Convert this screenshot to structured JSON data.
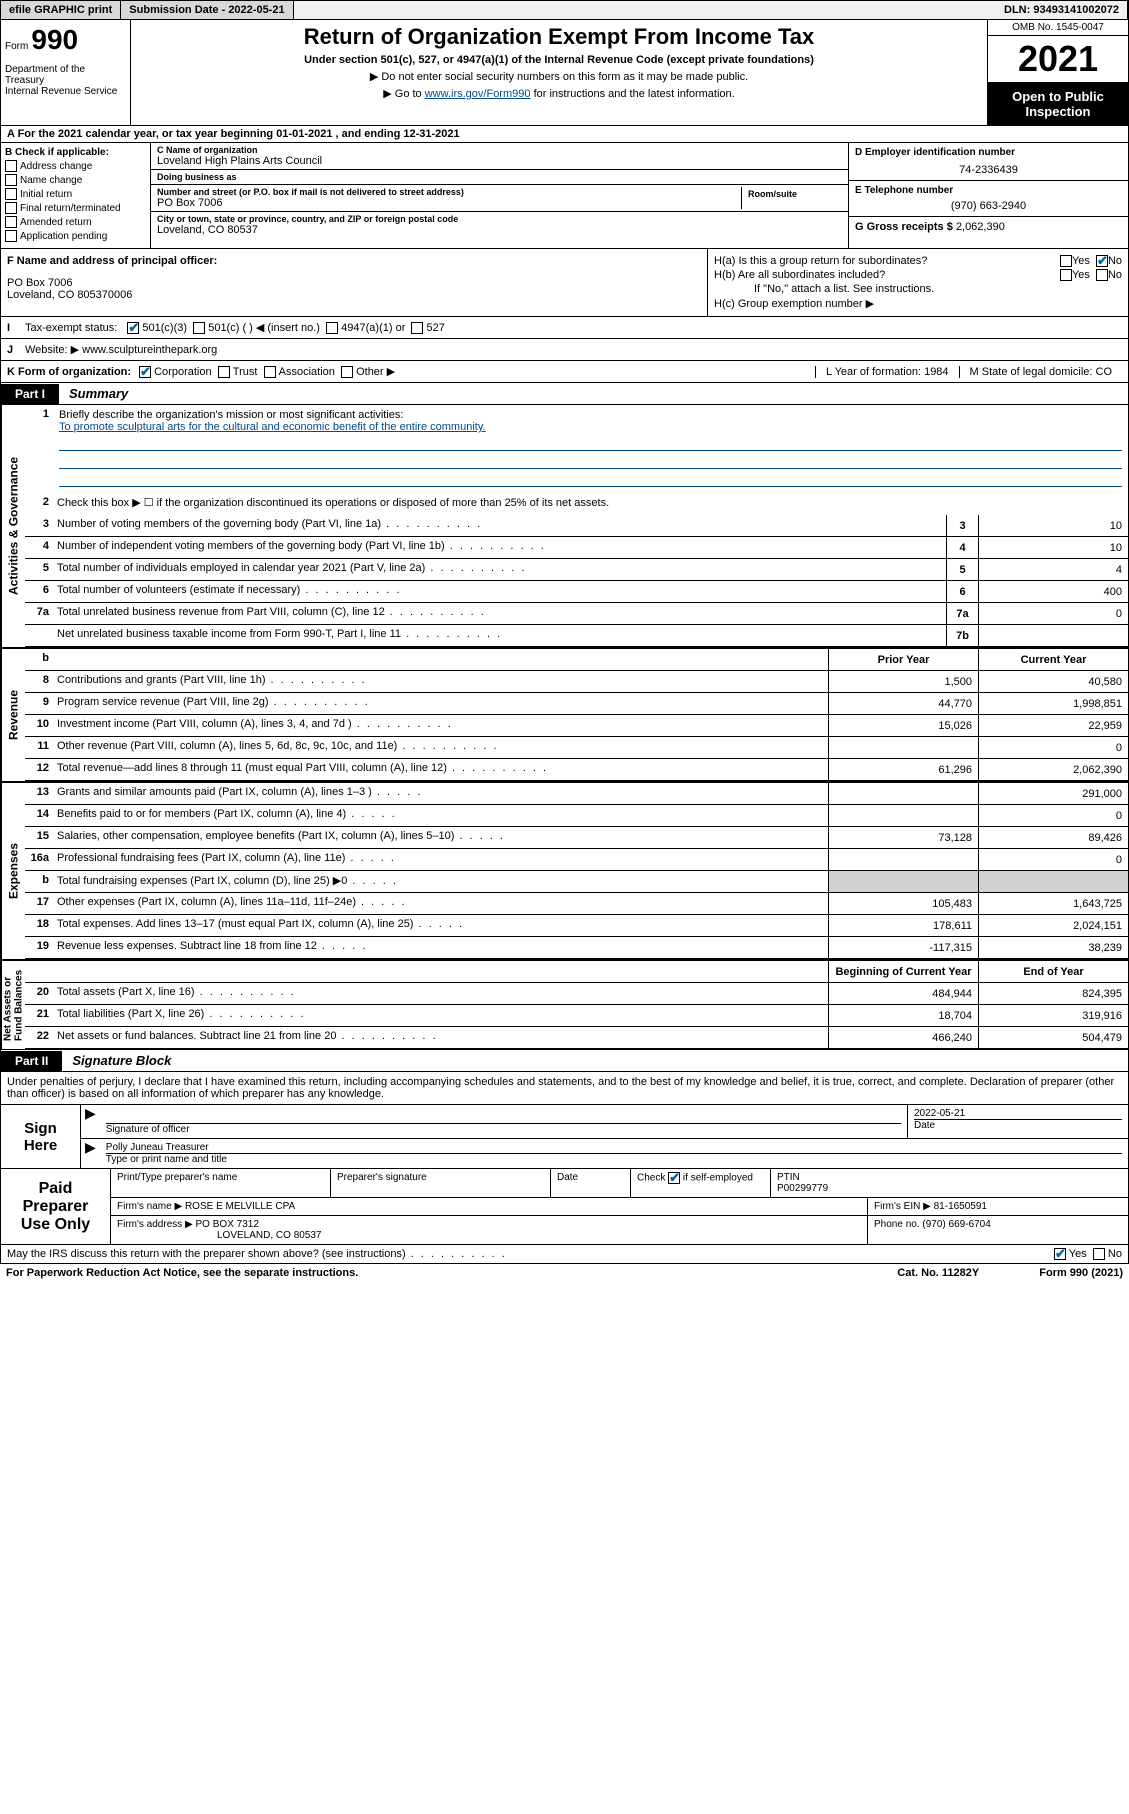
{
  "topbar": {
    "efile": "efile GRAPHIC print",
    "submission_label": "Submission Date - 2022-05-21",
    "dln": "DLN: 93493141002072"
  },
  "header": {
    "form_label": "Form",
    "form_no": "990",
    "title": "Return of Organization Exempt From Income Tax",
    "sub1": "Under section 501(c), 527, or 4947(a)(1) of the Internal Revenue Code (except private foundations)",
    "sub2": "▶ Do not enter social security numbers on this form as it may be made public.",
    "sub3_pre": "▶ Go to ",
    "sub3_link": "www.irs.gov/Form990",
    "sub3_post": " for instructions and the latest information.",
    "dept": "Department of the Treasury\nInternal Revenue Service",
    "omb": "OMB No. 1545-0047",
    "year": "2021",
    "open": "Open to Public Inspection"
  },
  "rowA": "A For the 2021 calendar year, or tax year beginning 01-01-2021   , and ending 12-31-2021",
  "boxB": {
    "title": "B Check if applicable:",
    "opts": [
      "Address change",
      "Name change",
      "Initial return",
      "Final return/terminated",
      "Amended return",
      "Application pending"
    ]
  },
  "boxC": {
    "name_lbl": "C Name of organization",
    "name": "Loveland High Plains Arts Council",
    "dba_lbl": "Doing business as",
    "dba": "",
    "addr_lbl": "Number and street (or P.O. box if mail is not delivered to street address)",
    "addr": "PO Box 7006",
    "room_lbl": "Room/suite",
    "city_lbl": "City or town, state or province, country, and ZIP or foreign postal code",
    "city": "Loveland, CO  80537"
  },
  "boxD": {
    "lbl": "D Employer identification number",
    "val": "74-2336439"
  },
  "boxE": {
    "lbl": "E Telephone number",
    "val": "(970) 663-2940"
  },
  "boxG": {
    "lbl": "G Gross receipts $",
    "val": "2,062,390"
  },
  "boxF": {
    "lbl": "F Name and address of principal officer:",
    "line1": "PO Box 7006",
    "line2": "Loveland, CO  805370006"
  },
  "boxH": {
    "ha": "H(a)  Is this a group return for subordinates?",
    "hb": "H(b)  Are all subordinates included?",
    "hb_note": "If \"No,\" attach a list. See instructions.",
    "hc": "H(c)  Group exemption number ▶"
  },
  "lineI": {
    "label": "Tax-exempt status:",
    "opts": [
      "501(c)(3)",
      "501(c) (  ) ◀ (insert no.)",
      "4947(a)(1) or",
      "527"
    ]
  },
  "lineJ": {
    "label": "Website: ▶",
    "val": "www.sculptureinthepark.org"
  },
  "lineK": {
    "label": "K Form of organization:",
    "opts": [
      "Corporation",
      "Trust",
      "Association",
      "Other ▶"
    ],
    "L": "L Year of formation: 1984",
    "M": "M State of legal domicile: CO"
  },
  "part1": {
    "tag": "Part I",
    "title": "Summary"
  },
  "mission": {
    "q": "Briefly describe the organization's mission or most significant activities:",
    "text": "To promote sculptural arts for the cultural and economic benefit of the entire community."
  },
  "line2": "Check this box ▶ ☐  if the organization discontinued its operations or disposed of more than 25% of its net assets.",
  "gov_rows": [
    {
      "n": "3",
      "d": "Number of voting members of the governing body (Part VI, line 1a)",
      "k": "3",
      "v": "10"
    },
    {
      "n": "4",
      "d": "Number of independent voting members of the governing body (Part VI, line 1b)",
      "k": "4",
      "v": "10"
    },
    {
      "n": "5",
      "d": "Total number of individuals employed in calendar year 2021 (Part V, line 2a)",
      "k": "5",
      "v": "4"
    },
    {
      "n": "6",
      "d": "Total number of volunteers (estimate if necessary)",
      "k": "6",
      "v": "400"
    },
    {
      "n": "7a",
      "d": "Total unrelated business revenue from Part VIII, column (C), line 12",
      "k": "7a",
      "v": "0"
    },
    {
      "n": "",
      "d": "Net unrelated business taxable income from Form 990-T, Part I, line 11",
      "k": "7b",
      "v": ""
    }
  ],
  "col_hdrs": {
    "b": "b",
    "prior": "Prior Year",
    "current": "Current Year"
  },
  "rev_rows": [
    {
      "n": "8",
      "d": "Contributions and grants (Part VIII, line 1h)",
      "p": "1,500",
      "c": "40,580"
    },
    {
      "n": "9",
      "d": "Program service revenue (Part VIII, line 2g)",
      "p": "44,770",
      "c": "1,998,851"
    },
    {
      "n": "10",
      "d": "Investment income (Part VIII, column (A), lines 3, 4, and 7d )",
      "p": "15,026",
      "c": "22,959"
    },
    {
      "n": "11",
      "d": "Other revenue (Part VIII, column (A), lines 5, 6d, 8c, 9c, 10c, and 11e)",
      "p": "",
      "c": "0"
    },
    {
      "n": "12",
      "d": "Total revenue—add lines 8 through 11 (must equal Part VIII, column (A), line 12)",
      "p": "61,296",
      "c": "2,062,390"
    }
  ],
  "exp_rows": [
    {
      "n": "13",
      "d": "Grants and similar amounts paid (Part IX, column (A), lines 1–3 )",
      "p": "",
      "c": "291,000"
    },
    {
      "n": "14",
      "d": "Benefits paid to or for members (Part IX, column (A), line 4)",
      "p": "",
      "c": "0"
    },
    {
      "n": "15",
      "d": "Salaries, other compensation, employee benefits (Part IX, column (A), lines 5–10)",
      "p": "73,128",
      "c": "89,426"
    },
    {
      "n": "16a",
      "d": "Professional fundraising fees (Part IX, column (A), line 11e)",
      "p": "",
      "c": "0"
    },
    {
      "n": "b",
      "d": "Total fundraising expenses (Part IX, column (D), line 25) ▶0",
      "p": "shade",
      "c": "shade"
    },
    {
      "n": "17",
      "d": "Other expenses (Part IX, column (A), lines 11a–11d, 11f–24e)",
      "p": "105,483",
      "c": "1,643,725"
    },
    {
      "n": "18",
      "d": "Total expenses. Add lines 13–17 (must equal Part IX, column (A), line 25)",
      "p": "178,611",
      "c": "2,024,151"
    },
    {
      "n": "19",
      "d": "Revenue less expenses. Subtract line 18 from line 12",
      "p": "-117,315",
      "c": "38,239"
    }
  ],
  "na_hdrs": {
    "b": "Beginning of Current Year",
    "e": "End of Year"
  },
  "na_rows": [
    {
      "n": "20",
      "d": "Total assets (Part X, line 16)",
      "p": "484,944",
      "c": "824,395"
    },
    {
      "n": "21",
      "d": "Total liabilities (Part X, line 26)",
      "p": "18,704",
      "c": "319,916"
    },
    {
      "n": "22",
      "d": "Net assets or fund balances. Subtract line 21 from line 20",
      "p": "466,240",
      "c": "504,479"
    }
  ],
  "sidelabels": {
    "gov": "Activities & Governance",
    "rev": "Revenue",
    "exp": "Expenses",
    "na": "Net Assets or\nFund Balances"
  },
  "part2": {
    "tag": "Part II",
    "title": "Signature Block"
  },
  "penalty": "Under penalties of perjury, I declare that I have examined this return, including accompanying schedules and statements, and to the best of my knowledge and belief, it is true, correct, and complete. Declaration of preparer (other than officer) is based on all information of which preparer has any knowledge.",
  "sign": {
    "here": "Sign Here",
    "sig_lbl": "Signature of officer",
    "date": "2022-05-21",
    "date_lbl": "Date",
    "name": "Polly Juneau  Treasurer",
    "name_lbl": "Type or print name and title"
  },
  "prep": {
    "title": "Paid Preparer Use Only",
    "hdrs": [
      "Print/Type preparer's name",
      "Preparer's signature",
      "Date"
    ],
    "check_lbl": "Check",
    "self": "if self-employed",
    "ptin_lbl": "PTIN",
    "ptin": "P00299779",
    "firm_name_lbl": "Firm's name   ▶",
    "firm_name": "ROSE E MELVILLE CPA",
    "firm_ein_lbl": "Firm's EIN ▶",
    "firm_ein": "81-1650591",
    "firm_addr_lbl": "Firm's address ▶",
    "firm_addr1": "PO BOX 7312",
    "firm_addr2": "LOVELAND, CO  80537",
    "phone_lbl": "Phone no.",
    "phone": "(970) 669-6704"
  },
  "discuss": "May the IRS discuss this return with the preparer shown above? (see instructions)",
  "footer": {
    "pra": "For Paperwork Reduction Act Notice, see the separate instructions.",
    "cat": "Cat. No. 11282Y",
    "form": "Form 990 (2021)"
  }
}
